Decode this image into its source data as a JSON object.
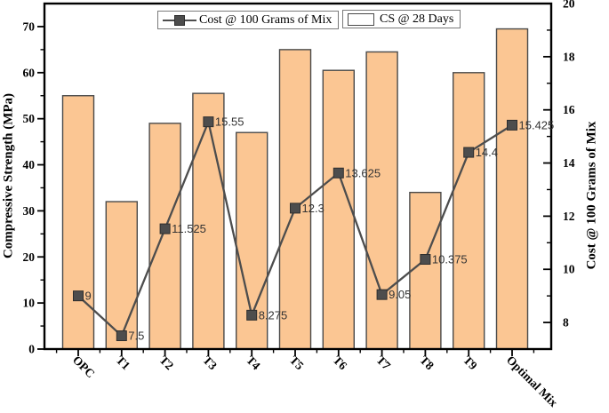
{
  "figure": {
    "background": "#ffffff"
  },
  "legend": {
    "line_label": "Cost @ 100 Grams of Mix",
    "bar_label": "CS @ 28 Days"
  },
  "colors": {
    "bar_fill": "#FBC693",
    "bar_edge": "#4A4A4A",
    "line": "#4D4D4D",
    "marker_fill": "#4D4D4D",
    "marker_edge": "#2E2E2E",
    "axis": "#000000",
    "data_label": "#333333",
    "legend_border": "#7A7A7A"
  },
  "chart_data": {
    "type": "combo-bar-line-dual-axis",
    "categories": [
      "OPC",
      "T1",
      "T2",
      "T3",
      "T4",
      "T5",
      "T6",
      "T7",
      "T8",
      "T9",
      "Optimal Mix"
    ],
    "series": [
      {
        "name": "CS @ 28 Days",
        "type": "bar",
        "axis": "left",
        "values": [
          55,
          32,
          49,
          55.5,
          47,
          65,
          60.5,
          64.5,
          34,
          60,
          69.5
        ]
      },
      {
        "name": "Cost @ 100 Grams of Mix",
        "type": "line",
        "axis": "right",
        "values": [
          9,
          7.5,
          11.525,
          15.55,
          8.275,
          12.3,
          13.625,
          9.05,
          10.375,
          14.4,
          15.425
        ],
        "point_labels": [
          "9",
          "7.5",
          "11.525",
          "15.55",
          "8.275",
          "12.3",
          "13.625",
          "9.05",
          "10.375",
          "14.4",
          "15.425"
        ]
      }
    ],
    "left_axis": {
      "label": "Compressive Strength (MPa)",
      "ticks": [
        0,
        10,
        20,
        30,
        40,
        50,
        60,
        70
      ],
      "minor_ticks": [
        5,
        15,
        25,
        35,
        45,
        55,
        65
      ],
      "range": [
        0,
        75
      ]
    },
    "right_axis": {
      "label": "Cost @ 100 Grams of Mix",
      "ticks": [
        8,
        10,
        12,
        14,
        16,
        18,
        20
      ],
      "minor_ticks": [
        9,
        11,
        13,
        15,
        17,
        19
      ],
      "range": [
        7,
        20
      ]
    },
    "grid": false,
    "legend_position": "top-inside"
  }
}
